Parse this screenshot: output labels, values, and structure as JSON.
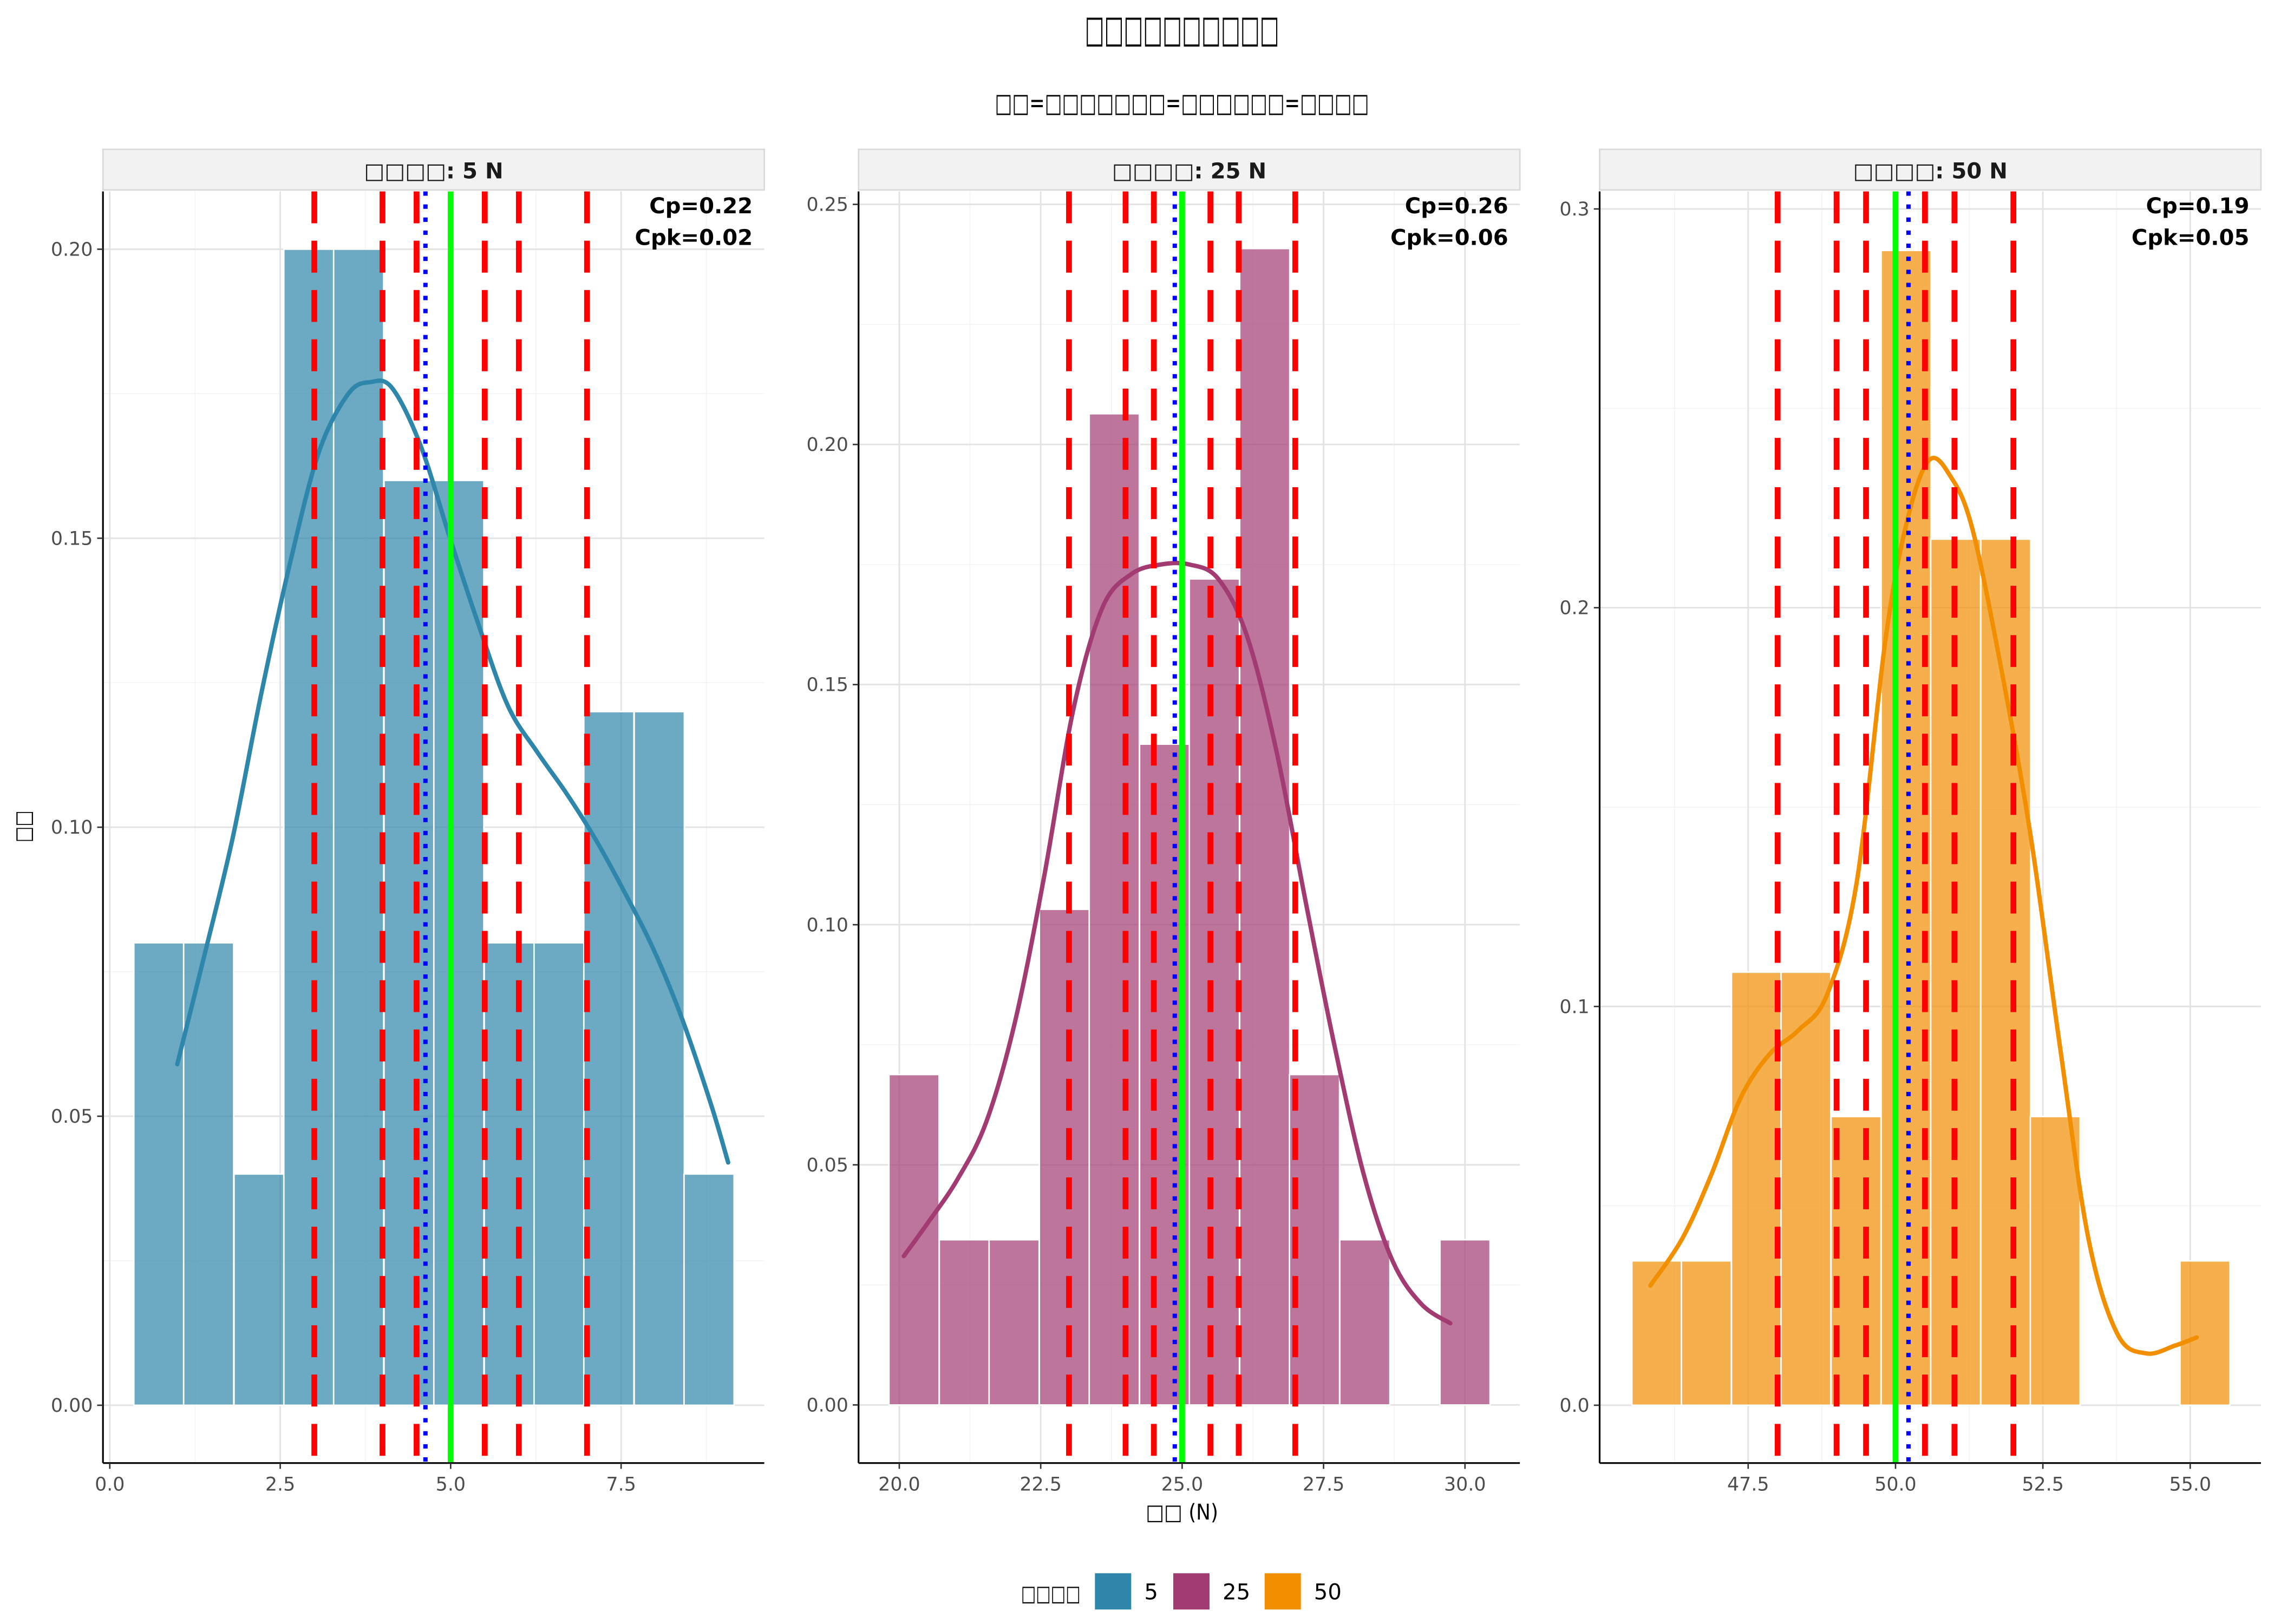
{
  "title": "□□□□□□□□□□",
  "subtitle": "□□=□□□□□□□=□□□□□□=□□□□",
  "y_axis_label": "□□",
  "x_axis_label": "□□ (N)",
  "legend_title": "□□□□",
  "reference_line_colors": {
    "spec_limit": "#ff0000",
    "target": "#00ff00",
    "mean": "#0000ff"
  },
  "chart_data": [
    {
      "type": "bar",
      "facet_label": "□□□□: 5 N",
      "name": "5",
      "color": "#2e86ab",
      "bin_width": 0.734,
      "bin_centers": [
        0.72,
        1.45,
        2.19,
        2.92,
        3.65,
        4.39,
        5.12,
        5.86,
        6.59,
        7.32,
        8.06,
        8.79
      ],
      "density": [
        0.08,
        0.08,
        0.04,
        0.2,
        0.2,
        0.16,
        0.16,
        0.08,
        0.08,
        0.12,
        0.12,
        0.04
      ],
      "density_curve": {
        "x": [
          0.99,
          1.37,
          1.8,
          2.22,
          2.65,
          3.07,
          3.5,
          3.82,
          4.14,
          4.56,
          4.99,
          5.41,
          5.84,
          6.27,
          6.69,
          7.12,
          7.54,
          7.97,
          8.39,
          8.82,
          9.07
        ],
        "y": [
          0.059,
          0.077,
          0.098,
          0.123,
          0.146,
          0.165,
          0.175,
          0.177,
          0.176,
          0.166,
          0.15,
          0.135,
          0.121,
          0.113,
          0.106,
          0.098,
          0.089,
          0.079,
          0.067,
          0.052,
          0.042
        ]
      },
      "spec_lines": [
        3,
        4,
        4.5,
        5.5,
        6,
        7
      ],
      "target": 5.0,
      "mean": 4.63,
      "annotation": {
        "cp": "Cp=0.22",
        "cpk": "Cpk=0.02"
      },
      "xlim": [
        -0.1,
        9.6
      ],
      "ylim": [
        -0.01,
        0.21
      ],
      "x_ticks": [
        0,
        2.5,
        5,
        7.5
      ],
      "x_tick_labels": [
        "0.0",
        "2.5",
        "5.0",
        "7.5"
      ],
      "y_ticks": [
        0,
        0.05,
        0.1,
        0.15,
        0.2
      ],
      "y_tick_labels": [
        "0.00",
        "0.05",
        "0.10",
        "0.15",
        "0.20"
      ]
    },
    {
      "type": "bar",
      "facet_label": "□□□□: 25 N",
      "name": "25",
      "color": "#a23b72",
      "bin_width": 0.885,
      "bin_centers": [
        20.26,
        21.15,
        22.03,
        22.92,
        23.8,
        24.69,
        25.57,
        26.46,
        27.34,
        28.23,
        29.11,
        30.0
      ],
      "density": [
        0.0688,
        0.0344,
        0.0344,
        0.1032,
        0.2064,
        0.1376,
        0.172,
        0.2408,
        0.0688,
        0.0344,
        0,
        0.0344
      ],
      "density_curve": {
        "x": [
          20.08,
          20.51,
          21.03,
          21.54,
          22.05,
          22.56,
          23.08,
          23.59,
          24.1,
          24.62,
          25.13,
          25.64,
          26.15,
          26.67,
          27.18,
          27.69,
          28.21,
          28.72,
          29.23,
          29.74
        ],
        "y": [
          0.031,
          0.038,
          0.047,
          0.059,
          0.08,
          0.11,
          0.145,
          0.166,
          0.173,
          0.175,
          0.175,
          0.172,
          0.16,
          0.136,
          0.105,
          0.075,
          0.048,
          0.03,
          0.021,
          0.017
        ]
      },
      "spec_lines": [
        23,
        24,
        24.5,
        25.5,
        26,
        27
      ],
      "target": 25.0,
      "mean": 24.87,
      "annotation": {
        "cp": "Cp=0.26",
        "cpk": "Cpk=0.06"
      },
      "xlim": [
        19.28,
        30.97
      ],
      "ylim": [
        -0.0121,
        0.2527
      ],
      "x_ticks": [
        20,
        22.5,
        25,
        27.5,
        30
      ],
      "x_tick_labels": [
        "20.0",
        "22.5",
        "25.0",
        "27.5",
        "30.0"
      ],
      "y_ticks": [
        0,
        0.05,
        0.1,
        0.15,
        0.2,
        0.25
      ],
      "y_tick_labels": [
        "0.00",
        "0.05",
        "0.10",
        "0.15",
        "0.20",
        "0.25"
      ]
    },
    {
      "type": "bar",
      "facet_label": "□□□□: 50 N",
      "name": "50",
      "color": "#f18f01",
      "bin_width": 0.846,
      "bin_centers": [
        45.95,
        46.79,
        47.64,
        48.48,
        49.33,
        50.18,
        51.02,
        51.87,
        52.71,
        53.56,
        54.41,
        55.25
      ],
      "density": [
        0.0362,
        0.0362,
        0.1086,
        0.1086,
        0.0724,
        0.2896,
        0.2172,
        0.2172,
        0.0724,
        0,
        0,
        0.0362
      ],
      "density_curve": {
        "x": [
          45.84,
          46.39,
          46.88,
          47.37,
          47.86,
          48.35,
          48.84,
          49.34,
          49.83,
          50.2,
          50.57,
          50.93,
          51.3,
          51.79,
          52.29,
          52.78,
          53.27,
          53.76,
          54.25,
          54.75,
          55.11
        ],
        "y": [
          0.03,
          0.042,
          0.058,
          0.077,
          0.088,
          0.094,
          0.103,
          0.131,
          0.192,
          0.222,
          0.237,
          0.233,
          0.22,
          0.185,
          0.143,
          0.091,
          0.042,
          0.018,
          0.013,
          0.015,
          0.017
        ]
      },
      "spec_lines": [
        48,
        49,
        49.5,
        50.5,
        51,
        52
      ],
      "target": 50.0,
      "mean": 50.22,
      "annotation": {
        "cp": "Cp=0.19",
        "cpk": "Cpk=0.05"
      },
      "xlim": [
        44.98,
        56.2
      ],
      "ylim": [
        -0.0145,
        0.3044
      ],
      "x_ticks": [
        47.5,
        50,
        52.5,
        55
      ],
      "x_tick_labels": [
        "47.5",
        "50.0",
        "52.5",
        "55.0"
      ],
      "y_ticks": [
        0,
        0.1,
        0.2,
        0.3
      ],
      "y_tick_labels": [
        "0.0",
        "0.1",
        "0.2",
        "0.3"
      ]
    }
  ]
}
